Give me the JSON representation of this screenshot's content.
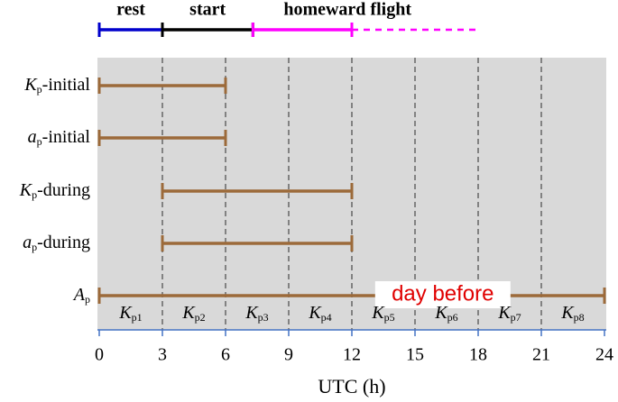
{
  "chart_data": {
    "type": "timeline",
    "xlabel": "UTC (h)",
    "xlim": [
      0,
      24
    ],
    "xticks": [
      0,
      3,
      6,
      9,
      12,
      15,
      18,
      21,
      24
    ],
    "grid": true,
    "phases": [
      {
        "name": "rest",
        "start": 0,
        "end": 3,
        "color": "#0000cc"
      },
      {
        "name": "start",
        "start": 3,
        "end": 7.3,
        "color": "#000000"
      },
      {
        "name": "homeward flight",
        "start": 7.3,
        "end": 12,
        "color": "#ff00ff"
      }
    ],
    "projection": {
      "start": 12,
      "end": 18,
      "color": "#ff00ff",
      "style": "dashed"
    },
    "rows": [
      {
        "label": {
          "symbol": "K",
          "subscript": "p",
          "suffix": "-initial"
        },
        "start": 0,
        "end": 6
      },
      {
        "label": {
          "symbol": "a",
          "subscript": "p",
          "suffix": "-initial"
        },
        "start": 0,
        "end": 6
      },
      {
        "label": {
          "symbol": "K",
          "subscript": "p",
          "suffix": "-during"
        },
        "start": 3,
        "end": 12
      },
      {
        "label": {
          "symbol": "a",
          "subscript": "p",
          "suffix": "-during"
        },
        "start": 3,
        "end": 12
      },
      {
        "label": {
          "symbol": "A",
          "subscript": "p"
        },
        "start": 0,
        "end": 24
      }
    ],
    "bar_color": "#9c6a3a",
    "annotation": "day before",
    "bins": [
      {
        "symbol": "K",
        "subscript": "p1"
      },
      {
        "symbol": "K",
        "subscript": "p2"
      },
      {
        "symbol": "K",
        "subscript": "p3"
      },
      {
        "symbol": "K",
        "subscript": "p4"
      },
      {
        "symbol": "K",
        "subscript": "p5"
      },
      {
        "symbol": "K",
        "subscript": "p6"
      },
      {
        "symbol": "K",
        "subscript": "p7"
      },
      {
        "symbol": "K",
        "subscript": "p8"
      }
    ]
  }
}
